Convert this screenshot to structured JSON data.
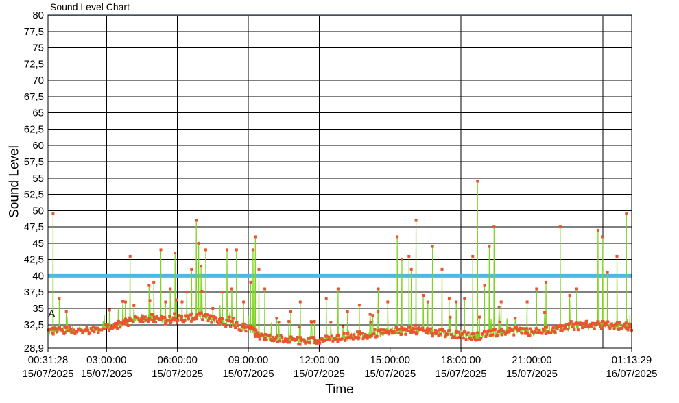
{
  "chart_data": {
    "type": "line",
    "title": "Sound Level Chart",
    "xlabel": "Time",
    "ylabel": "Sound Level",
    "ylim": [
      28.9,
      80
    ],
    "yticks": [
      "80",
      "77,5",
      "75",
      "72,5",
      "70",
      "67,5",
      "65",
      "62,5",
      "60",
      "57,5",
      "55",
      "52,5",
      "50",
      "47,5",
      "45",
      "42,5",
      "40",
      "37,5",
      "35",
      "32,5",
      "28,9"
    ],
    "ytick_values": [
      80,
      77.5,
      75,
      72.5,
      70,
      67.5,
      65,
      62.5,
      60,
      57.5,
      55,
      52.5,
      50,
      47.5,
      45,
      42.5,
      40,
      37.5,
      35,
      32.5,
      28.9
    ],
    "xlim": [
      "2025-07-15 00:31:28",
      "2025-07-16 01:13:29"
    ],
    "xticks": [
      {
        "time": "00:31:28",
        "date": "15/07/2025",
        "hours": 0.5244
      },
      {
        "time": "03:00:00",
        "date": "15/07/2025",
        "hours": 3.0
      },
      {
        "time": "06:00:00",
        "date": "15/07/2025",
        "hours": 6.0
      },
      {
        "time": "09:00:00",
        "date": "15/07/2025",
        "hours": 9.0
      },
      {
        "time": "12:00:00",
        "date": "15/07/2025",
        "hours": 12.0
      },
      {
        "time": "15:00:00",
        "date": "15/07/2025",
        "hours": 15.0
      },
      {
        "time": "18:00:00",
        "date": "15/07/2025",
        "hours": 18.0
      },
      {
        "time": "21:00:00",
        "date": "15/07/2025",
        "hours": 21.0
      },
      {
        "time": "01:13:29",
        "date": "16/07/2025",
        "hours": 25.2247
      }
    ],
    "extra_gridline_hours": [
      24.0
    ],
    "threshold": {
      "value": 40,
      "color": "#4db8e8"
    },
    "top_line": {
      "value": 80,
      "color": "#7aa0d8"
    },
    "annotation": {
      "text": "A",
      "hours": 0.62,
      "value": 34.2
    },
    "series": [
      {
        "color": "#7ed321",
        "marker_color": "#e8552e",
        "baseline_hours": [
          0.5244,
          1.5,
          2.5,
          3.2,
          4.0,
          4.8,
          5.5,
          6.2,
          7.0,
          7.8,
          8.6,
          9.0,
          9.5,
          10.5,
          11.5,
          12.5,
          13.5,
          14.5,
          15.0,
          16.0,
          17.0,
          18.0,
          18.5,
          19.5,
          20.5,
          21.0,
          22.0,
          23.0,
          24.0,
          25.2247
        ],
        "baseline_values": [
          31.5,
          31.6,
          31.7,
          32.2,
          33.0,
          33.6,
          33.2,
          33.4,
          33.8,
          33.0,
          32.2,
          32.0,
          30.8,
          30.2,
          30.0,
          30.3,
          30.8,
          31.1,
          31.6,
          31.6,
          31.3,
          31.0,
          30.6,
          31.3,
          31.6,
          31.3,
          31.9,
          32.3,
          32.5,
          32.2
        ],
        "peaks": [
          {
            "hours": 0.74,
            "value": 49.5
          },
          {
            "hours": 1.0,
            "value": 36.5
          },
          {
            "hours": 1.3,
            "value": 34.5
          },
          {
            "hours": 3.5,
            "value": 35.0
          },
          {
            "hours": 3.8,
            "value": 36.0
          },
          {
            "hours": 4.0,
            "value": 43.0
          },
          {
            "hours": 4.5,
            "value": 34.0
          },
          {
            "hours": 4.8,
            "value": 38.5
          },
          {
            "hours": 5.0,
            "value": 39.0
          },
          {
            "hours": 5.3,
            "value": 44.0
          },
          {
            "hours": 5.5,
            "value": 36.0
          },
          {
            "hours": 5.7,
            "value": 38.0
          },
          {
            "hours": 5.9,
            "value": 43.5
          },
          {
            "hours": 6.2,
            "value": 36.0
          },
          {
            "hours": 6.4,
            "value": 37.5
          },
          {
            "hours": 6.6,
            "value": 41.0
          },
          {
            "hours": 6.8,
            "value": 48.5
          },
          {
            "hours": 6.9,
            "value": 45.0
          },
          {
            "hours": 7.0,
            "value": 41.5
          },
          {
            "hours": 7.2,
            "value": 44.0
          },
          {
            "hours": 7.5,
            "value": 35.0
          },
          {
            "hours": 7.8,
            "value": 35.5
          },
          {
            "hours": 7.9,
            "value": 37.5
          },
          {
            "hours": 8.1,
            "value": 44.0
          },
          {
            "hours": 8.3,
            "value": 38.0
          },
          {
            "hours": 8.5,
            "value": 44.0
          },
          {
            "hours": 8.8,
            "value": 36.0
          },
          {
            "hours": 9.1,
            "value": 39.0
          },
          {
            "hours": 9.2,
            "value": 44.0
          },
          {
            "hours": 9.3,
            "value": 46.0
          },
          {
            "hours": 9.45,
            "value": 41.0
          },
          {
            "hours": 9.7,
            "value": 38.0
          },
          {
            "hours": 10.2,
            "value": 33.5
          },
          {
            "hours": 10.8,
            "value": 34.5
          },
          {
            "hours": 11.2,
            "value": 36.0
          },
          {
            "hours": 11.8,
            "value": 33.0
          },
          {
            "hours": 12.3,
            "value": 36.5
          },
          {
            "hours": 12.8,
            "value": 38.0
          },
          {
            "hours": 13.2,
            "value": 34.5
          },
          {
            "hours": 13.7,
            "value": 35.5
          },
          {
            "hours": 14.5,
            "value": 38.0
          },
          {
            "hours": 14.9,
            "value": 36.0
          },
          {
            "hours": 15.3,
            "value": 46.0
          },
          {
            "hours": 15.5,
            "value": 42.5
          },
          {
            "hours": 15.8,
            "value": 43.0
          },
          {
            "hours": 15.9,
            "value": 41.0
          },
          {
            "hours": 16.1,
            "value": 48.5
          },
          {
            "hours": 16.4,
            "value": 37.0
          },
          {
            "hours": 16.6,
            "value": 36.0
          },
          {
            "hours": 16.8,
            "value": 44.5
          },
          {
            "hours": 17.2,
            "value": 41.0
          },
          {
            "hours": 17.5,
            "value": 36.5
          },
          {
            "hours": 17.8,
            "value": 36.0
          },
          {
            "hours": 18.15,
            "value": 36.5
          },
          {
            "hours": 18.5,
            "value": 43.0
          },
          {
            "hours": 18.7,
            "value": 54.5
          },
          {
            "hours": 19.0,
            "value": 38.5
          },
          {
            "hours": 19.2,
            "value": 44.5
          },
          {
            "hours": 19.4,
            "value": 47.5
          },
          {
            "hours": 19.7,
            "value": 36.0
          },
          {
            "hours": 20.3,
            "value": 33.5
          },
          {
            "hours": 20.8,
            "value": 36.0
          },
          {
            "hours": 21.2,
            "value": 38.0
          },
          {
            "hours": 21.6,
            "value": 39.0
          },
          {
            "hours": 22.2,
            "value": 47.5
          },
          {
            "hours": 22.6,
            "value": 37.0
          },
          {
            "hours": 22.9,
            "value": 38.0
          },
          {
            "hours": 23.3,
            "value": 32.5
          },
          {
            "hours": 23.8,
            "value": 47.0
          },
          {
            "hours": 24.0,
            "value": 46.0
          },
          {
            "hours": 24.2,
            "value": 40.5
          },
          {
            "hours": 24.6,
            "value": 43.0
          },
          {
            "hours": 25.0,
            "value": 49.5
          },
          {
            "hours": 25.15,
            "value": 34.0
          }
        ]
      }
    ],
    "grid": true,
    "legend": "none"
  }
}
